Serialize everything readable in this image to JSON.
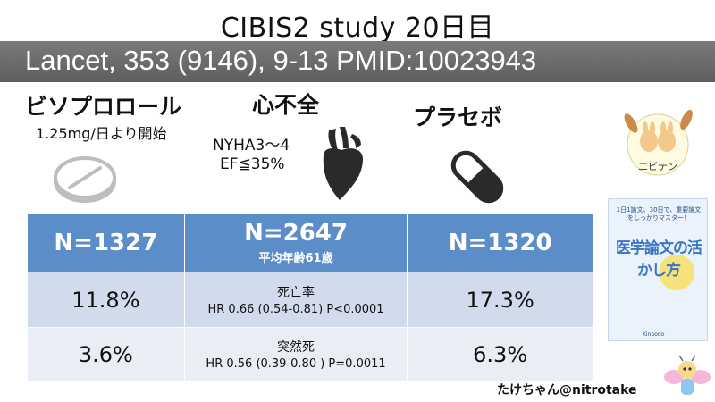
{
  "title": "CIBIS2 study  20日目",
  "citation": "Lancet, 353 (9146), 9-13 PMID:10023943",
  "drug": {
    "name": "ビソプロロール",
    "dose": "1.25mg/日より開始",
    "icon": "pill-icon"
  },
  "heart_failure": {
    "name": "心不全",
    "nyha": "NYHA3～4",
    "ef": "EF≦35%",
    "icon": "heart-icon"
  },
  "placebo": {
    "name": "プラセボ",
    "icon": "capsule-icon"
  },
  "table": {
    "header": {
      "drug_n": "N=1327",
      "total_n": "N=2647",
      "total_sub": "平均年齢61歳",
      "placebo_n": "N=1320"
    },
    "rows": [
      {
        "drug": "11.8%",
        "label": "死亡率",
        "stat": "HR 0.66 (0.54-0.81) P<0.0001",
        "placebo": "17.3%"
      },
      {
        "drug": "3.6%",
        "label": "突然死",
        "stat": "HR 0.56 (0.39-0.80 ) P=0.0011",
        "placebo": "6.3%"
      }
    ]
  },
  "logo": {
    "text": "エビテン"
  },
  "book": {
    "tagline": "1日1論文、30日で、重要論文をしっかりマスター！",
    "title": "医学論文の活かし方",
    "publisher": "Kinpodo"
  },
  "credit": "たけちゃん@nitrotake",
  "colors": {
    "banner": "#666666",
    "table_header": "#5b8ec9",
    "row1": "#d2dbec",
    "row2": "#e9edf5"
  }
}
